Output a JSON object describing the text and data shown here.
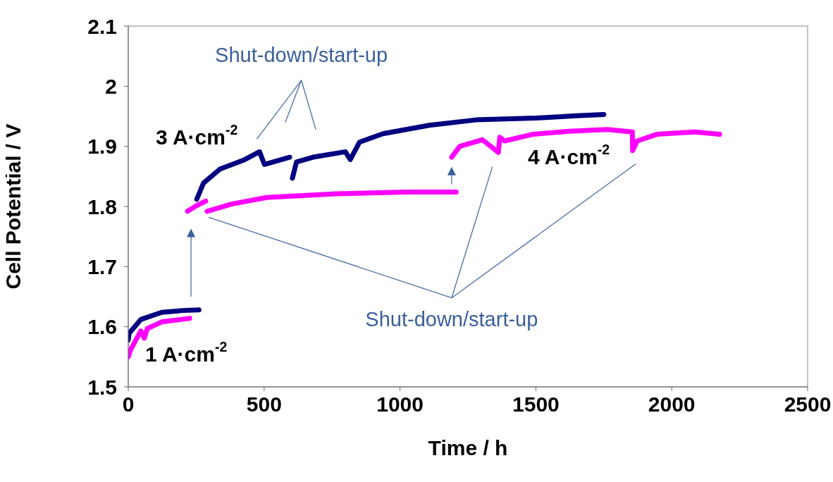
{
  "chart_data": {
    "type": "line",
    "xlabel": "Time / h",
    "ylabel": "Cell Potential / V",
    "xlim": [
      0,
      2500
    ],
    "xticks": [
      0,
      500,
      1000,
      1500,
      2000,
      2500
    ],
    "ylim": [
      1.5,
      2.1
    ],
    "yticks": [
      1.5,
      1.6,
      1.7,
      1.8,
      1.9,
      2,
      2.1
    ],
    "grid": false,
    "marker": "none",
    "line_style": "solid",
    "series": [
      {
        "color": "#000080",
        "x": [
          0,
          3,
          46,
          123,
          200,
          260
        ],
        "values": [
          1.578,
          1.589,
          1.612,
          1.624,
          1.627,
          1.628
        ]
      },
      {
        "color": "#000080",
        "x": [
          252,
          277,
          337,
          424,
          483,
          501,
          594
        ],
        "values": [
          1.812,
          1.839,
          1.862,
          1.877,
          1.891,
          1.87,
          1.882
        ]
      },
      {
        "color": "#000080",
        "x": [
          604,
          619,
          680,
          799,
          817,
          851,
          937,
          1108,
          1280,
          1500,
          1650,
          1750
        ],
        "values": [
          1.847,
          1.874,
          1.882,
          1.891,
          1.878,
          1.907,
          1.921,
          1.935,
          1.944,
          1.947,
          1.951,
          1.953
        ]
      },
      {
        "color": "#ff00ff",
        "x": [
          0,
          8,
          46,
          59,
          70,
          123,
          226
        ],
        "values": [
          1.55,
          1.561,
          1.593,
          1.581,
          1.597,
          1.608,
          1.614
        ]
      },
      {
        "color": "#ff00ff",
        "x": [
          218,
          250,
          285
        ],
        "values": [
          1.792,
          1.801,
          1.809
        ]
      },
      {
        "color": "#ff00ff",
        "x": [
          290,
          380,
          509,
          766,
          1023,
          1207
        ],
        "values": [
          1.792,
          1.804,
          1.815,
          1.821,
          1.824,
          1.824
        ]
      },
      {
        "color": "#ff00ff",
        "x": [
          1190,
          1220,
          1303,
          1362,
          1367,
          1385,
          1488,
          1624,
          1763,
          1855,
          1856,
          1873,
          1945,
          2084,
          2176
        ],
        "values": [
          1.882,
          1.9,
          1.911,
          1.89,
          1.915,
          1.909,
          1.92,
          1.925,
          1.928,
          1.924,
          1.893,
          1.909,
          1.92,
          1.924,
          1.92
        ]
      }
    ],
    "annotations": [
      "3 A·cm$^{-2}$",
      "1 A·cm$^{-2}$",
      "4 A·cm$^{-2}$",
      "Shut-down/start-up",
      "Shut-down/start-up"
    ]
  }
}
